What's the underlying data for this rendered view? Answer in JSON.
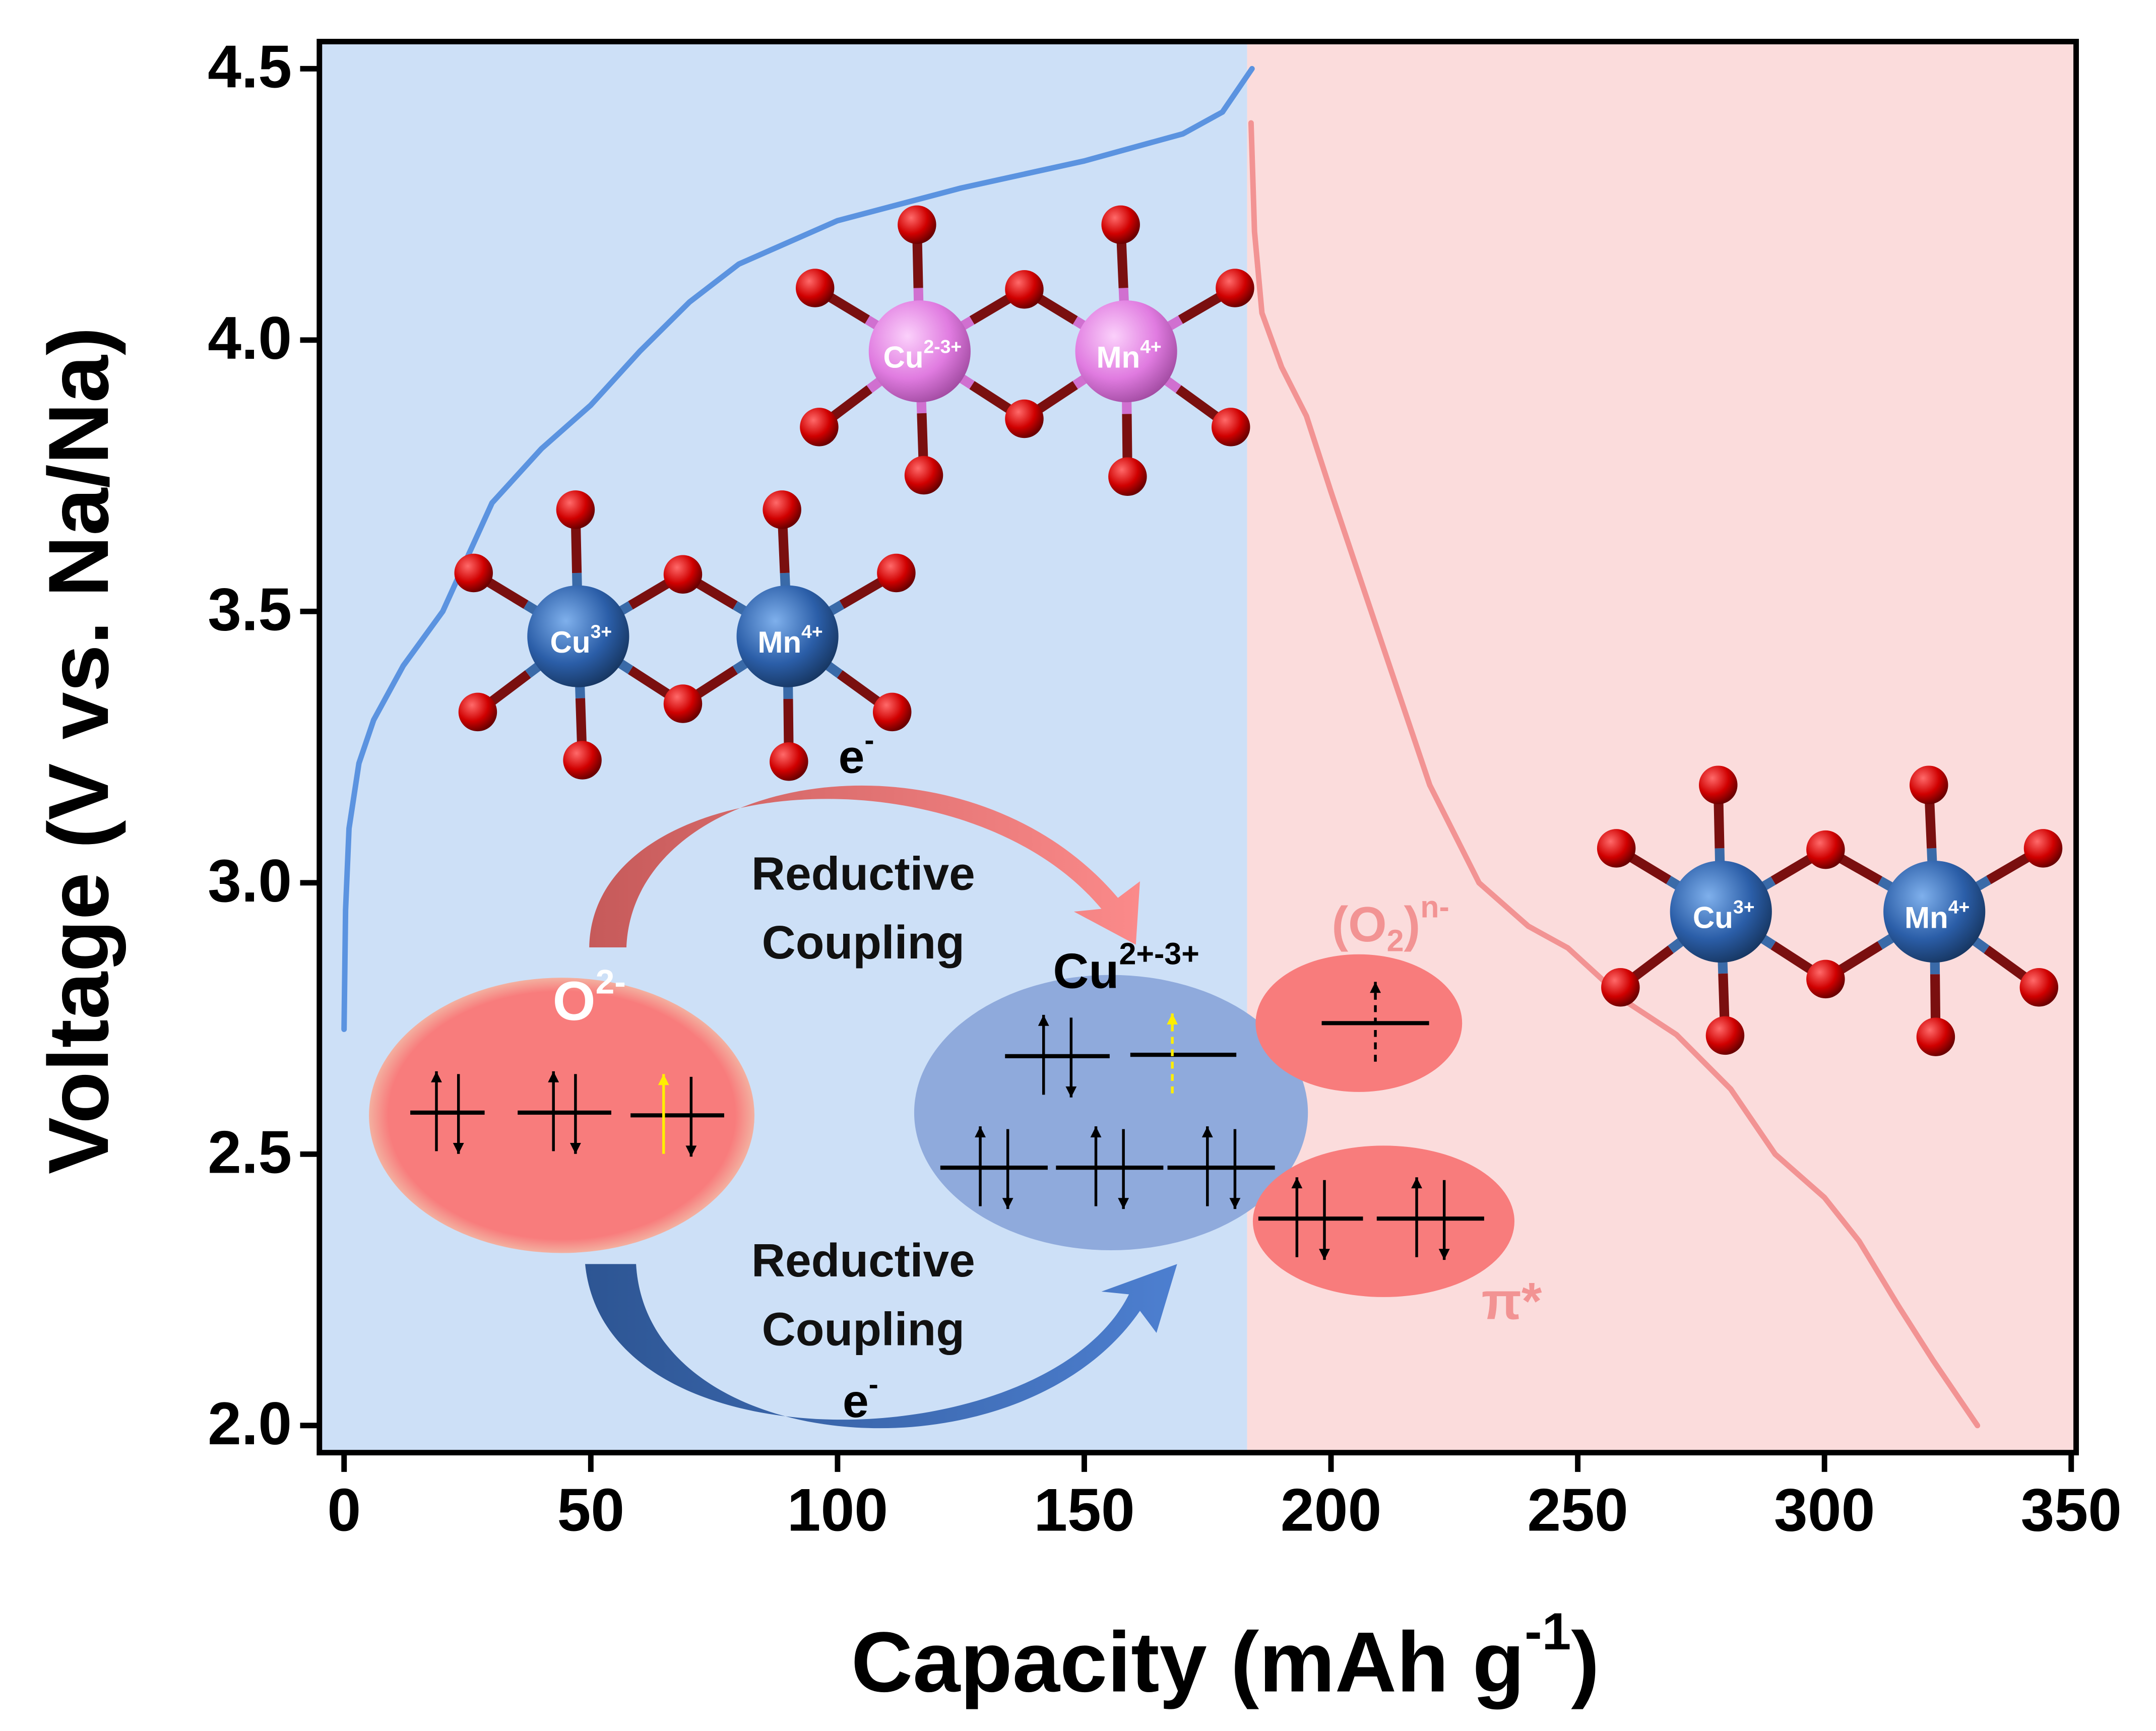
{
  "chart_data": {
    "type": "line",
    "xlabel": {
      "text": "Capacity (mAh g",
      "sup": "-1",
      "tail": ")"
    },
    "ylabel": "Voltage (V vs. Na/Na)",
    "xlim": [
      -5,
      351
    ],
    "ylim": [
      1.95,
      4.55
    ],
    "xticks": [
      0,
      50,
      100,
      150,
      200,
      250,
      300,
      350
    ],
    "yticks": [
      {
        "value": 2,
        "label": "2.0"
      },
      2.5,
      {
        "value": 3,
        "label": "3.0"
      },
      3.5,
      {
        "value": 4,
        "label": "4.0"
      },
      4.5
    ],
    "shaded_regions": [
      {
        "xlim": [
          -5,
          183
        ],
        "color": "#cde0f7"
      },
      {
        "xlim": [
          183,
          351
        ],
        "color": "#fbdcdc"
      }
    ],
    "series": [
      {
        "color": "#5b93e0",
        "x": [
          0,
          0.3,
          1,
          3,
          6,
          12,
          20,
          25,
          30,
          40,
          50,
          60,
          70,
          80,
          100,
          125,
          150,
          170,
          178,
          184
        ],
        "values": [
          2.73,
          2.95,
          3.1,
          3.22,
          3.3,
          3.4,
          3.5,
          3.6,
          3.7,
          3.8,
          3.88,
          3.98,
          4.07,
          4.14,
          4.22,
          4.28,
          4.33,
          4.38,
          4.42,
          4.5
        ]
      },
      {
        "color": "#f29393",
        "x": [
          183.8,
          184.5,
          186,
          190,
          195,
          200,
          210,
          220,
          230,
          240,
          248,
          260,
          270,
          281,
          290,
          300,
          307,
          315,
          322,
          331
        ],
        "values": [
          4.4,
          4.2,
          4.05,
          3.95,
          3.86,
          3.72,
          3.45,
          3.18,
          3.0,
          2.92,
          2.88,
          2.78,
          2.72,
          2.62,
          2.5,
          2.42,
          2.34,
          2.22,
          2.12,
          2.0
        ]
      }
    ],
    "annotations": {
      "cluster_charged": [
        {
          "base": "Cu",
          "sup": "2-3+"
        },
        {
          "base": "Mn",
          "sup": "4+"
        }
      ],
      "cluster_pristine": [
        {
          "base": "Cu",
          "sup": "3+"
        },
        {
          "base": "Mn",
          "sup": "4+"
        }
      ],
      "cluster_discharged": [
        {
          "base": "Cu",
          "sup": "3+"
        },
        {
          "base": "Mn",
          "sup": "4+"
        }
      ],
      "electron_top": {
        "base": "e",
        "sup": "-"
      },
      "electron_bottom": {
        "base": "e",
        "sup": "-"
      },
      "coupling_top": [
        "Reductive",
        "Coupling"
      ],
      "coupling_bottom": [
        "Reductive",
        "Coupling"
      ],
      "oxide": {
        "base": "O",
        "sup": "2-"
      },
      "copper_mixed": {
        "base": "Cu",
        "sup": "2+-3+"
      },
      "peroxo": {
        "base": "(O",
        "sub": "2",
        "tail": ")",
        "sup": "n-"
      },
      "pi_star": "π*"
    }
  }
}
